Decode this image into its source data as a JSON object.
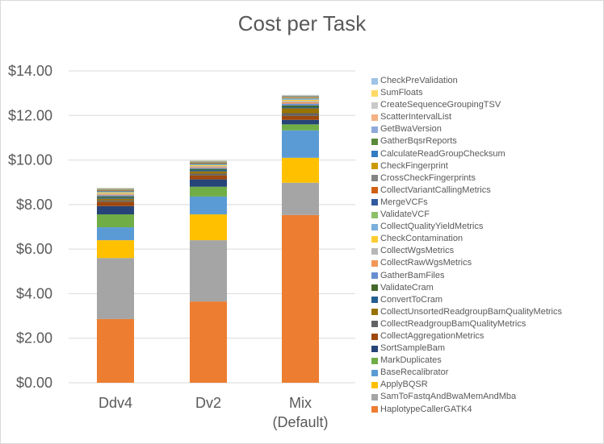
{
  "chart_data": {
    "type": "bar",
    "stacked": true,
    "title": "Cost per Task",
    "xlabel": "",
    "ylabel": "",
    "ylim": [
      0,
      14
    ],
    "yticks": [
      "$0.00",
      "$2.00",
      "$4.00",
      "$6.00",
      "$8.00",
      "$10.00",
      "$12.00",
      "$14.00"
    ],
    "ytick_values": [
      0,
      2,
      4,
      6,
      8,
      10,
      12,
      14
    ],
    "grid": true,
    "legend_position": "right",
    "categories": [
      [
        "Ddv4"
      ],
      [
        "Dv2"
      ],
      [
        "Mix",
        "(Default)"
      ]
    ],
    "series": [
      {
        "name": "HaplotypeCallerGATK4",
        "color": "#ed7d31",
        "values": [
          2.86,
          3.65,
          7.53
        ]
      },
      {
        "name": "SamToFastqAndBwaMemAndMba",
        "color": "#a5a5a5",
        "values": [
          2.74,
          2.75,
          1.45
        ]
      },
      {
        "name": "ApplyBQSR",
        "color": "#ffc000",
        "values": [
          0.8,
          1.16,
          1.12
        ]
      },
      {
        "name": "BaseRecalibrator",
        "color": "#5b9bd5",
        "values": [
          0.58,
          0.8,
          1.23
        ]
      },
      {
        "name": "MarkDuplicates",
        "color": "#70ad47",
        "values": [
          0.58,
          0.44,
          0.27
        ]
      },
      {
        "name": "SortSampleBam",
        "color": "#264478",
        "values": [
          0.37,
          0.33,
          0.2
        ]
      },
      {
        "name": "CollectAggregationMetrics",
        "color": "#9e480e",
        "values": [
          0.2,
          0.18,
          0.18
        ]
      },
      {
        "name": "CollectReadgroupBamQualityMetrics",
        "color": "#636363",
        "values": [
          0.06,
          0.08,
          0.12
        ]
      },
      {
        "name": "CollectUnsortedReadgroupBamQualityMetrics",
        "color": "#997300",
        "values": [
          0.07,
          0.1,
          0.22
        ]
      },
      {
        "name": "ConvertToCram",
        "color": "#255e91",
        "values": [
          0.05,
          0.06,
          0.05
        ]
      },
      {
        "name": "ValidateCram",
        "color": "#43682b",
        "values": [
          0.06,
          0.05,
          0.08
        ]
      },
      {
        "name": "GatherBamFiles",
        "color": "#698ed0",
        "values": [
          0.05,
          0.05,
          0.08
        ]
      },
      {
        "name": "CollectRawWgsMetrics",
        "color": "#f1975a",
        "values": [
          0.04,
          0.04,
          0.06
        ]
      },
      {
        "name": "CollectWgsMetrics",
        "color": "#b7b7b7",
        "values": [
          0.04,
          0.04,
          0.06
        ]
      },
      {
        "name": "CheckContamination",
        "color": "#ffcd33",
        "values": [
          0.04,
          0.04,
          0.05
        ]
      },
      {
        "name": "CollectQualityYieldMetrics",
        "color": "#7cafdd",
        "values": [
          0.03,
          0.03,
          0.04
        ]
      },
      {
        "name": "ValidateVCF",
        "color": "#8cc168",
        "values": [
          0.02,
          0.02,
          0.02
        ]
      },
      {
        "name": "MergeVCFs",
        "color": "#335aa1",
        "values": [
          0.02,
          0.02,
          0.02
        ]
      },
      {
        "name": "CollectVariantCallingMetrics",
        "color": "#d26012",
        "values": [
          0.02,
          0.02,
          0.02
        ]
      },
      {
        "name": "CrossCheckFingerprints",
        "color": "#848484",
        "values": [
          0.02,
          0.02,
          0.02
        ]
      },
      {
        "name": "CheckFingerprint",
        "color": "#cc9a00",
        "values": [
          0.02,
          0.02,
          0.02
        ]
      },
      {
        "name": "CalculateReadGroupChecksum",
        "color": "#327dc2",
        "values": [
          0.02,
          0.02,
          0.02
        ]
      },
      {
        "name": "GatherBqsrReports",
        "color": "#5a8a39",
        "values": [
          0.01,
          0.01,
          0.01
        ]
      },
      {
        "name": "GetBwaVersion",
        "color": "#8fa9dc",
        "values": [
          0.01,
          0.01,
          0.01
        ]
      },
      {
        "name": "ScatterIntervalList",
        "color": "#f4b183",
        "values": [
          0.01,
          0.01,
          0.01
        ]
      },
      {
        "name": "CreateSequenceGroupingTSV",
        "color": "#c9c9c9",
        "values": [
          0.01,
          0.01,
          0.01
        ]
      },
      {
        "name": "SumFloats",
        "color": "#ffd966",
        "values": [
          0.01,
          0.01,
          0.01
        ]
      },
      {
        "name": "CheckPreValidation",
        "color": "#9dc3e6",
        "values": [
          0.01,
          0.01,
          0.01
        ]
      }
    ]
  }
}
